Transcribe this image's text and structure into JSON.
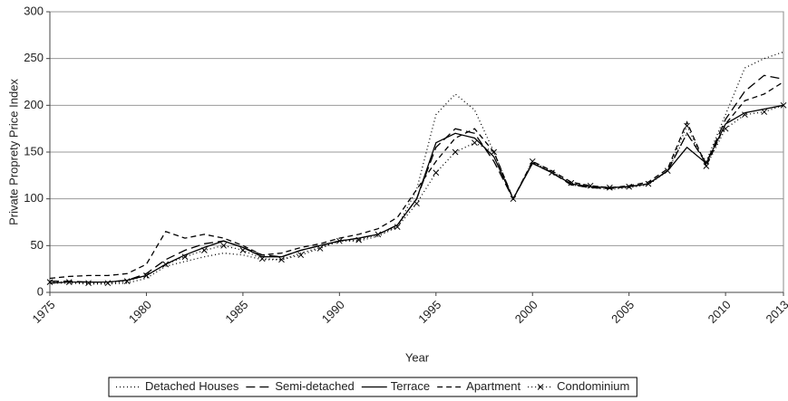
{
  "chart_data": {
    "type": "line",
    "x_label": "Year",
    "y_label": "Private Proprety Price Index",
    "x": [
      1975,
      1976,
      1977,
      1978,
      1979,
      1980,
      1981,
      1982,
      1983,
      1984,
      1985,
      1986,
      1987,
      1988,
      1989,
      1990,
      1991,
      1992,
      1993,
      1994,
      1995,
      1996,
      1997,
      1998,
      1999,
      2000,
      2001,
      2002,
      2003,
      2004,
      2005,
      2006,
      2007,
      2008,
      2009,
      2010,
      2011,
      2012,
      2013
    ],
    "xlim": [
      1975,
      2013
    ],
    "xticks": [
      1975,
      1980,
      1985,
      1990,
      1995,
      2000,
      2005,
      2010,
      2013
    ],
    "ylim": [
      0,
      300
    ],
    "yticks": [
      0,
      50,
      100,
      150,
      200,
      250,
      300
    ],
    "grid": true,
    "series": [
      {
        "name": "Detached Houses",
        "color": "#000000",
        "dash": "1,3",
        "values": [
          10,
          10,
          9,
          9,
          10,
          15,
          28,
          33,
          38,
          42,
          40,
          35,
          35,
          42,
          48,
          55,
          55,
          60,
          70,
          110,
          190,
          212,
          195,
          150,
          100,
          138,
          130,
          115,
          112,
          110,
          112,
          115,
          130,
          170,
          140,
          190,
          240,
          250,
          257
        ]
      },
      {
        "name": "Semi-detached",
        "color": "#000000",
        "dash": "10,5",
        "values": [
          12,
          12,
          11,
          11,
          13,
          20,
          35,
          45,
          52,
          55,
          48,
          40,
          38,
          45,
          50,
          55,
          58,
          62,
          72,
          100,
          155,
          175,
          170,
          140,
          100,
          138,
          128,
          115,
          112,
          111,
          113,
          116,
          130,
          170,
          138,
          185,
          215,
          232,
          228
        ]
      },
      {
        "name": "Terrace",
        "color": "#000000",
        "dash": "none",
        "values": [
          10,
          11,
          11,
          11,
          13,
          18,
          30,
          40,
          48,
          55,
          48,
          38,
          38,
          45,
          50,
          55,
          58,
          62,
          72,
          100,
          160,
          170,
          165,
          145,
          100,
          138,
          128,
          116,
          113,
          112,
          113,
          116,
          130,
          155,
          138,
          180,
          192,
          196,
          200
        ]
      },
      {
        "name": "Apartment",
        "color": "#000000",
        "dash": "6,4",
        "values": [
          15,
          17,
          18,
          18,
          20,
          30,
          65,
          58,
          62,
          58,
          50,
          40,
          42,
          48,
          52,
          58,
          62,
          68,
          80,
          110,
          140,
          165,
          175,
          150,
          100,
          140,
          130,
          118,
          114,
          112,
          114,
          118,
          132,
          182,
          135,
          180,
          205,
          212,
          225
        ]
      },
      {
        "name": "Condominium",
        "color": "#000000",
        "dash": "1,3",
        "marker": "x",
        "values": [
          11,
          11,
          10,
          10,
          12,
          18,
          30,
          38,
          45,
          50,
          45,
          36,
          35,
          40,
          47,
          55,
          56,
          62,
          70,
          95,
          128,
          150,
          160,
          150,
          100,
          140,
          128,
          117,
          114,
          112,
          113,
          116,
          130,
          178,
          135,
          175,
          190,
          193,
          200
        ]
      }
    ]
  }
}
